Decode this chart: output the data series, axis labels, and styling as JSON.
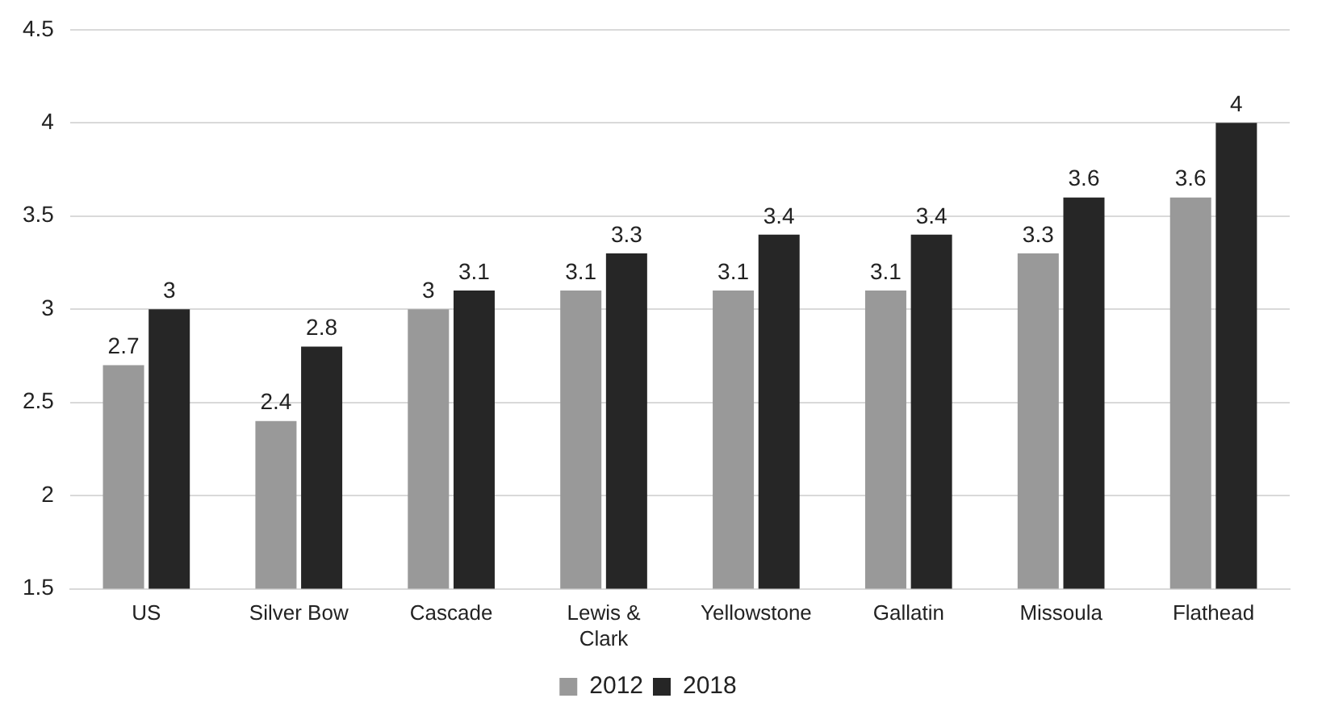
{
  "chart_data": {
    "type": "bar",
    "categories": [
      "US",
      "Silver Bow",
      "Cascade",
      "Lewis & Clark",
      "Yellowstone",
      "Gallatin",
      "Missoula",
      "Flathead"
    ],
    "series": [
      {
        "name": "2012",
        "color": "#999999",
        "values": [
          2.7,
          2.4,
          3,
          3.1,
          3.1,
          3.1,
          3.3,
          3.6
        ]
      },
      {
        "name": "2018",
        "color": "#262626",
        "values": [
          3,
          2.8,
          3.1,
          3.3,
          3.4,
          3.4,
          3.6,
          4
        ]
      }
    ],
    "ylim": [
      1.5,
      4.5
    ],
    "yticks": [
      1.5,
      2,
      2.5,
      3,
      3.5,
      4,
      4.5
    ],
    "grid": "y",
    "legend": "bottom",
    "data_labels": true
  }
}
